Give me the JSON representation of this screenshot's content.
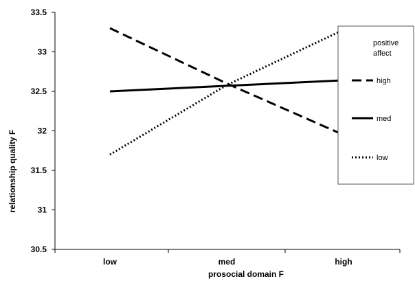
{
  "chart_data": {
    "type": "line",
    "title": "",
    "xlabel": "prosocial domain F",
    "ylabel": "relationship quality F",
    "categories": [
      "low",
      "med",
      "high"
    ],
    "ylim": [
      30.5,
      33.5
    ],
    "yticks": [
      "30.5",
      "31",
      "31.5",
      "32",
      "32.5",
      "33",
      "33.5"
    ],
    "grid": false,
    "legend": {
      "title": "positive affect",
      "placement": "right",
      "entries": [
        "high",
        "med",
        "low"
      ]
    },
    "series": [
      {
        "name": "high",
        "style": "dashed",
        "values": [
          33.3,
          32.6,
          31.95
        ]
      },
      {
        "name": "med",
        "style": "solid",
        "values": [
          32.5,
          32.57,
          32.64
        ]
      },
      {
        "name": "low",
        "style": "dotted",
        "values": [
          31.7,
          32.58,
          33.28
        ]
      }
    ]
  }
}
